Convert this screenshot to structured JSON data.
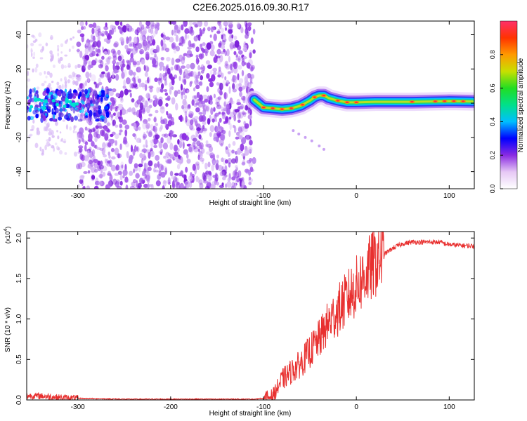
{
  "title": "C2E6.2025.016.09.30.R17",
  "chart_data": [
    {
      "type": "heatmap",
      "xlabel": "Height of straight line (km)",
      "ylabel": "Frequency (Hz)",
      "xlim": [
        -355,
        127
      ],
      "ylim": [
        -50,
        48
      ],
      "x_ticks": [
        -300,
        -200,
        -100,
        0,
        100
      ],
      "y_ticks": [
        -40,
        -20,
        0,
        20,
        40
      ],
      "colorbar": {
        "label": "Normalized spectral amplitude",
        "range": [
          0,
          1
        ],
        "ticks": [
          "0.0",
          "0.2",
          "0.4",
          "0.6",
          "0.8"
        ]
      },
      "colors": {
        "noise": "#8a2be2",
        "background": "#ffffff"
      },
      "ridge": {
        "x": [
          -110,
          -100,
          -90,
          -80,
          -70,
          -60,
          -50,
          -45,
          -40,
          -35,
          -30,
          -20,
          -10,
          0,
          20,
          40,
          60,
          80,
          100,
          125
        ],
        "frequency": [
          2.0,
          -2.5,
          -3.0,
          -3.5,
          -3.0,
          -1.5,
          1.5,
          3.5,
          4.5,
          4.5,
          3.0,
          1.5,
          0.5,
          0.5,
          0.8,
          0.8,
          0.8,
          1.0,
          1.2,
          1.0
        ]
      }
    },
    {
      "type": "line",
      "xlabel": "Height of straight line (km)",
      "ylabel": "SNR (10 * v/v)",
      "y_multiplier": "(x10",
      "y_multiplier_exp": "4",
      "y_multiplier_close": ")",
      "xlim": [
        -355,
        127
      ],
      "ylim": [
        0,
        2.08
      ],
      "x_ticks": [
        -300,
        -200,
        -100,
        0,
        100
      ],
      "y_ticks": [
        "0.0",
        "0.5",
        "1.0",
        "1.5",
        "2.0"
      ],
      "series": [
        {
          "color": "#e8302f",
          "x": [
            -355,
            -340,
            -320,
            -300,
            -250,
            -200,
            -150,
            -110,
            -100,
            -90,
            -85,
            -80,
            -70,
            -60,
            -50,
            -40,
            -30,
            -20,
            -10,
            0,
            10,
            20,
            30,
            40,
            50,
            60,
            70,
            80,
            90,
            95,
            100,
            110,
            127
          ],
          "y": [
            0.05,
            0.05,
            0.03,
            0.02,
            0.01,
            0.01,
            0.01,
            0.01,
            0.02,
            0.05,
            0.15,
            0.25,
            0.35,
            0.45,
            0.6,
            0.75,
            0.95,
            1.1,
            1.25,
            1.4,
            1.55,
            1.7,
            1.8,
            1.88,
            1.93,
            1.95,
            1.95,
            1.95,
            1.95,
            1.93,
            1.92,
            1.91,
            1.9
          ]
        }
      ]
    }
  ]
}
